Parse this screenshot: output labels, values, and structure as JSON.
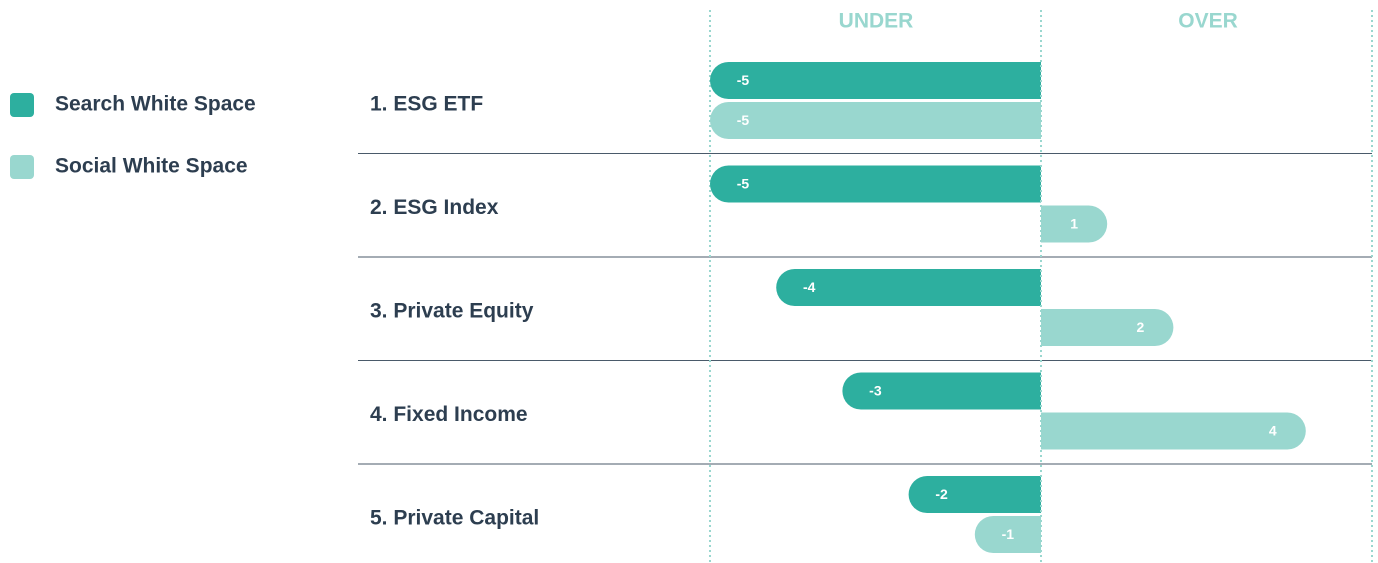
{
  "chart_data": {
    "type": "diverging_bar",
    "annotations": [
      "UNDER",
      "OVER"
    ],
    "categories": [
      "1. ESG ETF",
      "2. ESG Index",
      "3. Private Equity",
      "4. Fixed Income",
      "5. Private Capital"
    ],
    "series": [
      {
        "name": "Search White Space",
        "color": "#2daf9f",
        "values": [
          -5,
          -5,
          -4,
          -3,
          -2
        ]
      },
      {
        "name": "Social White Space",
        "color": "#99d7cf",
        "values": [
          -5,
          1,
          2,
          4,
          -1
        ]
      }
    ],
    "xlim": [
      -5,
      5
    ]
  }
}
